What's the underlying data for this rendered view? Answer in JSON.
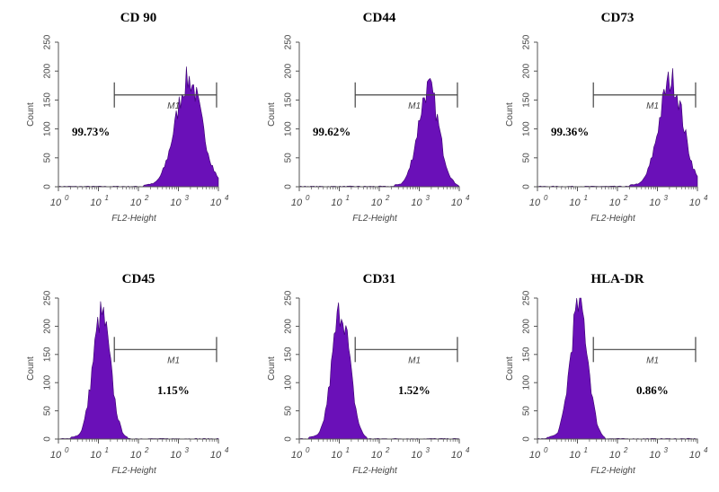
{
  "chart_data": [
    {
      "type": "area",
      "title": "CD 90",
      "xlabel": "FL2-Height",
      "ylabel": "Count",
      "xscale": "log",
      "xlim": [
        1,
        10000
      ],
      "ylim": [
        0,
        250
      ],
      "x_ticks": [
        "0",
        "1",
        "2",
        "3",
        "4"
      ],
      "y_ticks": [
        0,
        50,
        100,
        150,
        200,
        250
      ],
      "gate": {
        "label": "M1",
        "x_start": 25,
        "x_end": 9000
      },
      "percent": "99.73%",
      "peak": {
        "x": 1800,
        "count": 185
      },
      "spread": 0.33
    },
    {
      "type": "area",
      "title": "CD44",
      "xlabel": "FL2-Height",
      "ylabel": "Count",
      "xscale": "log",
      "xlim": [
        1,
        10000
      ],
      "ylim": [
        0,
        250
      ],
      "x_ticks": [
        "0",
        "1",
        "2",
        "3",
        "4"
      ],
      "y_ticks": [
        0,
        50,
        100,
        150,
        200,
        250
      ],
      "gate": {
        "label": "M1",
        "x_start": 25,
        "x_end": 9000
      },
      "percent": "99.62%",
      "peak": {
        "x": 1700,
        "count": 170
      },
      "spread": 0.26
    },
    {
      "type": "area",
      "title": "CD73",
      "xlabel": "FL2-Height",
      "ylabel": "Count",
      "xscale": "log",
      "xlim": [
        1,
        10000
      ],
      "ylim": [
        0,
        250
      ],
      "x_ticks": [
        "0",
        "1",
        "2",
        "3",
        "4"
      ],
      "y_ticks": [
        0,
        50,
        100,
        150,
        200,
        250
      ],
      "gate": {
        "label": "M1",
        "x_start": 25,
        "x_end": 9000
      },
      "percent": "99.36%",
      "peak": {
        "x": 2200,
        "count": 185
      },
      "spread": 0.3
    },
    {
      "type": "area",
      "title": "CD45",
      "xlabel": "FL2-Height",
      "ylabel": "Count",
      "xscale": "log",
      "xlim": [
        1,
        10000
      ],
      "ylim": [
        0,
        250
      ],
      "x_ticks": [
        "0",
        "1",
        "2",
        "3",
        "4"
      ],
      "y_ticks": [
        0,
        50,
        100,
        150,
        200,
        250
      ],
      "gate": {
        "label": "M1",
        "x_start": 25,
        "x_end": 9000
      },
      "percent": "1.15%",
      "peak": {
        "x": 12,
        "count": 220
      },
      "spread": 0.22
    },
    {
      "type": "area",
      "title": "CD31",
      "xlabel": "FL2-Height",
      "ylabel": "Count",
      "xscale": "log",
      "xlim": [
        1,
        10000
      ],
      "ylim": [
        0,
        250
      ],
      "x_ticks": [
        "0",
        "1",
        "2",
        "3",
        "4"
      ],
      "y_ticks": [
        0,
        50,
        100,
        150,
        200,
        250
      ],
      "gate": {
        "label": "M1",
        "x_start": 25,
        "x_end": 9000
      },
      "percent": "1.52%",
      "peak": {
        "x": 11,
        "count": 230
      },
      "spread": 0.22
    },
    {
      "type": "area",
      "title": "HLA-DR",
      "xlabel": "FL2-Height",
      "ylabel": "Count",
      "xscale": "log",
      "xlim": [
        1,
        10000
      ],
      "ylim": [
        0,
        250
      ],
      "x_ticks": [
        "0",
        "1",
        "2",
        "3",
        "4"
      ],
      "y_ticks": [
        0,
        50,
        100,
        150,
        200,
        250
      ],
      "gate": {
        "label": "M1",
        "x_start": 25,
        "x_end": 9000
      },
      "percent": "0.86%",
      "peak": {
        "x": 11,
        "count": 240
      },
      "spread": 0.22
    }
  ],
  "colors": {
    "fill": "#6a10b8",
    "axis": "#555555",
    "gate": "#444444"
  },
  "x_tick_base": "10"
}
